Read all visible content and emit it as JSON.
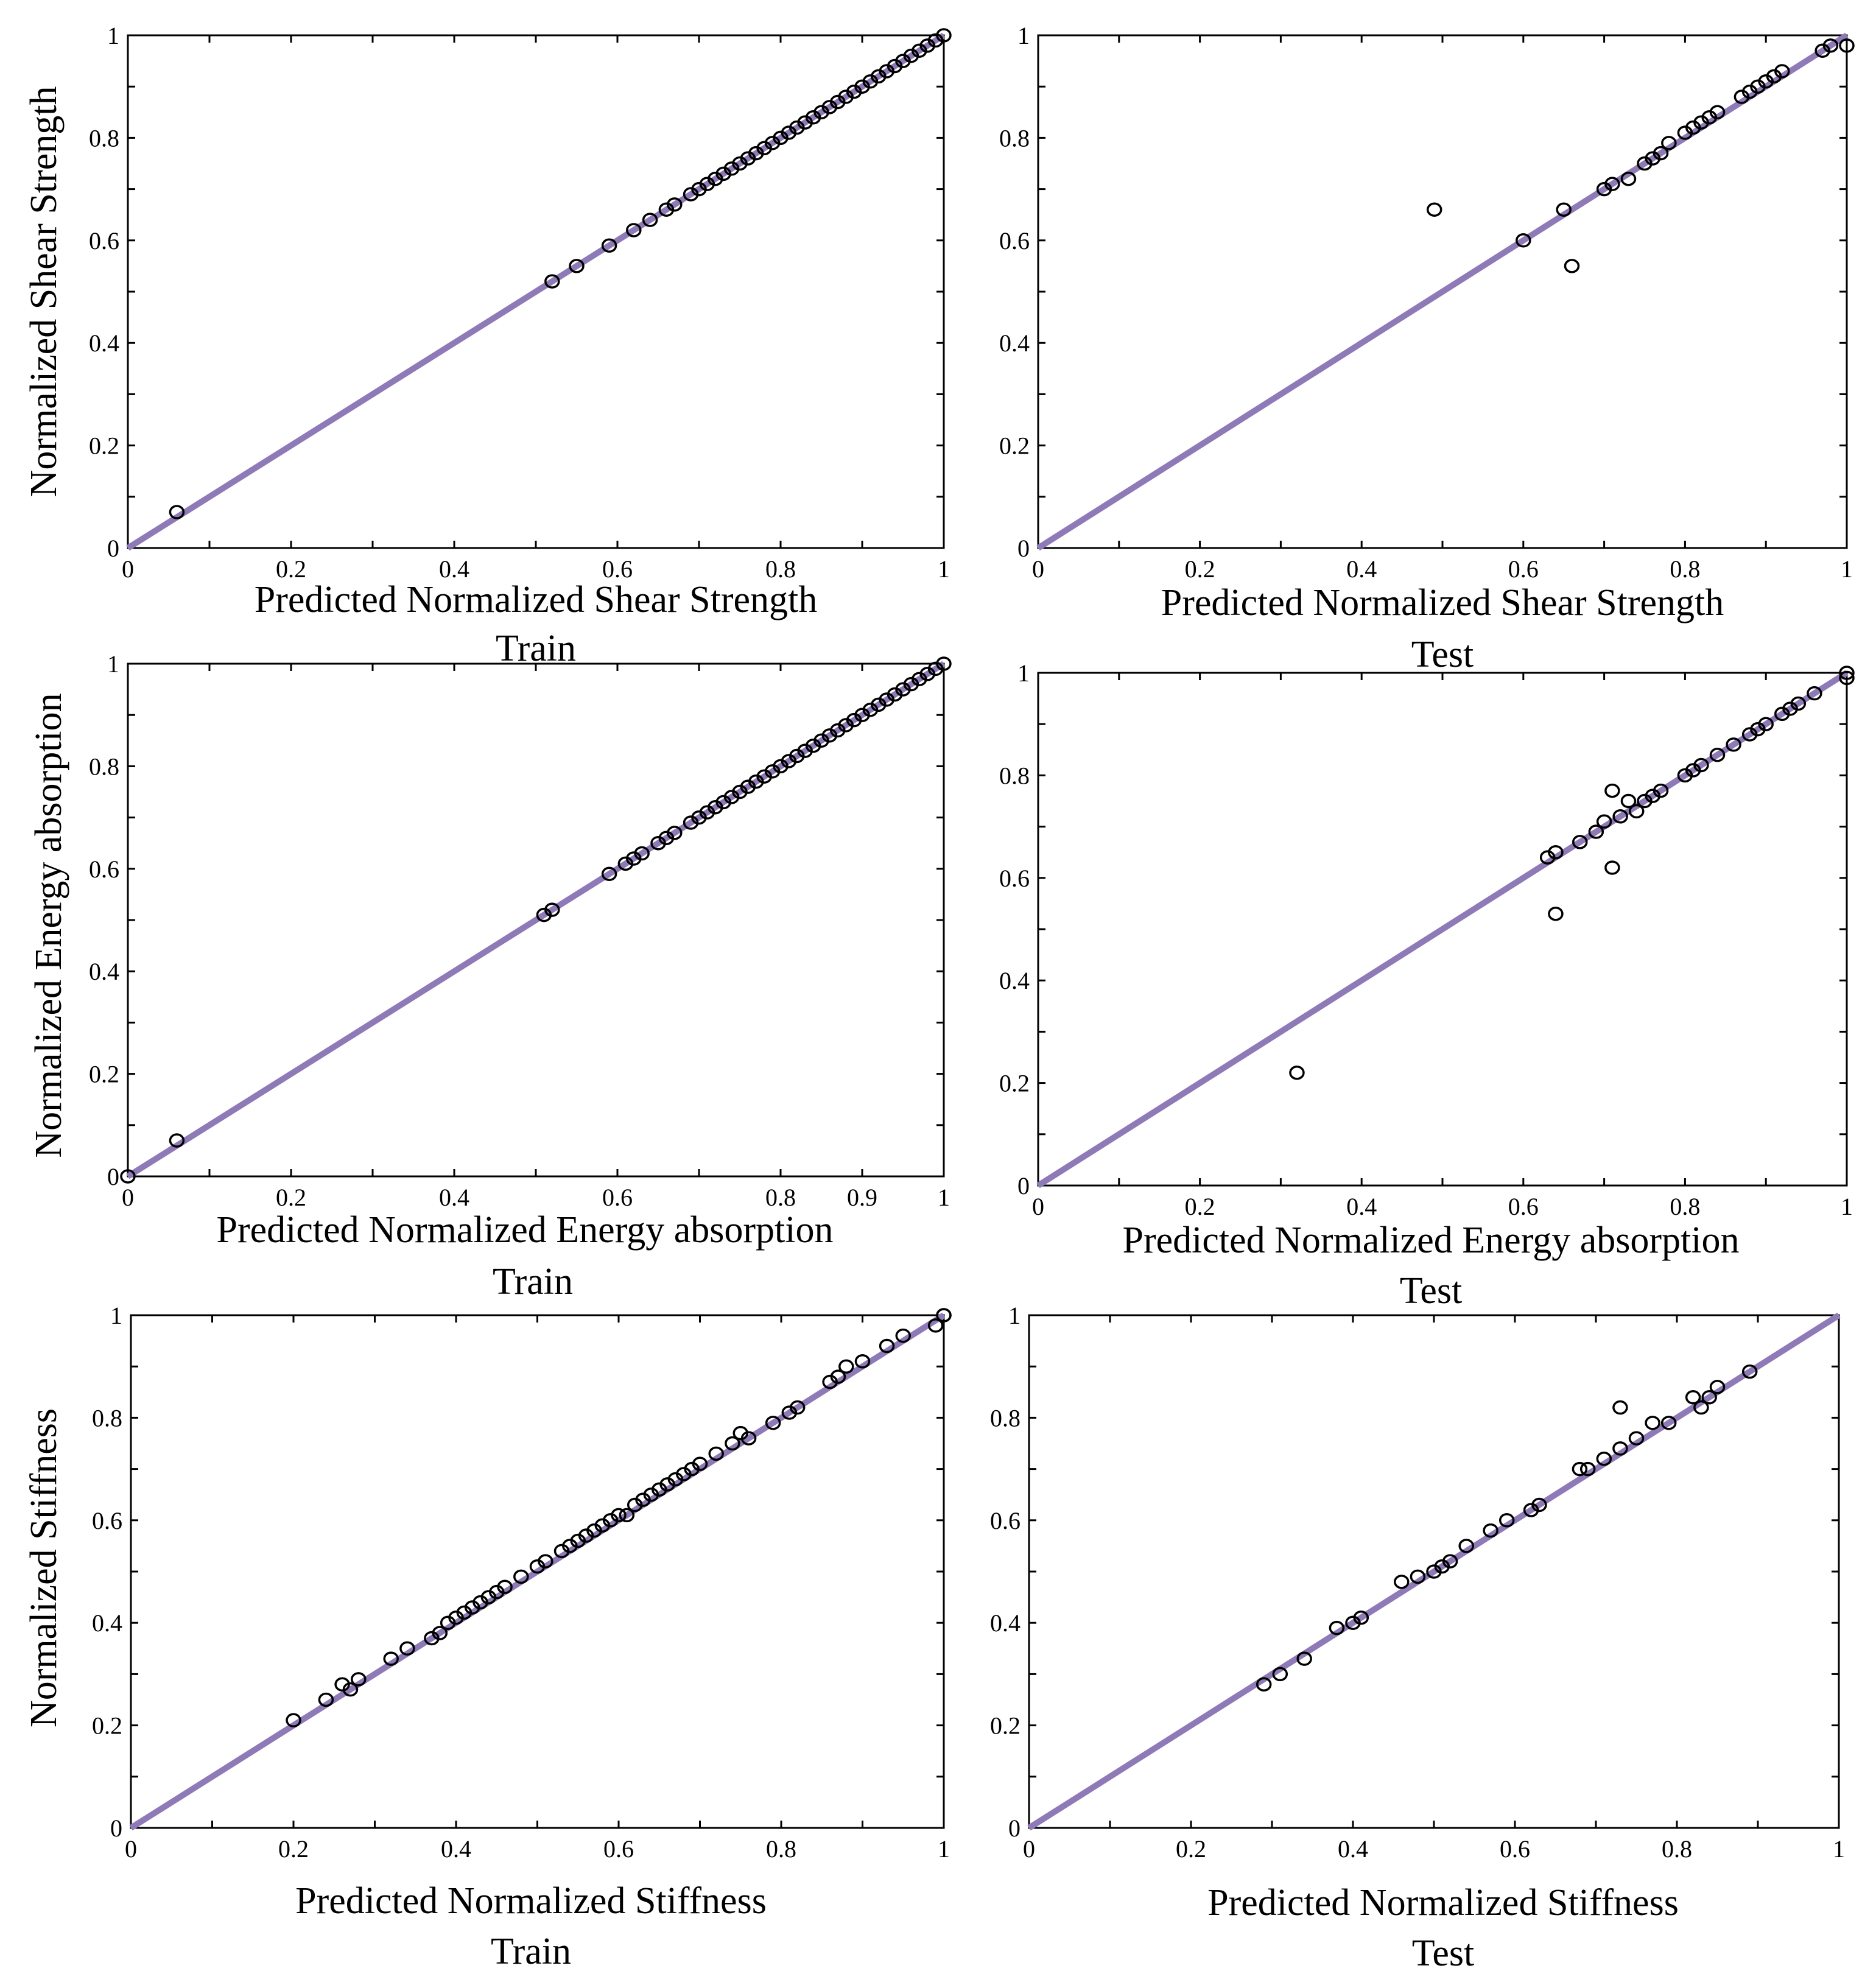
{
  "chart_data": [
    {
      "type": "scatter",
      "panel": "top-left",
      "xlabel": "Predicted Normalized Shear Strength",
      "ylabel": "Normalized Shear Strength",
      "caption": "Train",
      "xlim": [
        0,
        1
      ],
      "ylim": [
        0,
        1
      ],
      "xticks": [
        0,
        0.2,
        0.4,
        0.6,
        0.8,
        1
      ],
      "yticks": [
        0,
        0.2,
        0.4,
        0.6,
        0.8,
        1
      ],
      "xtick_labels": [
        "0",
        "0.2",
        "0.4",
        "0.6",
        "0.8",
        "1"
      ],
      "ytick_labels": [
        "0",
        "0.2",
        "0.4",
        "0.6",
        "0.8",
        "1"
      ],
      "reference_line": [
        [
          0,
          0
        ],
        [
          1,
          1
        ]
      ],
      "x": [
        0.06,
        0.52,
        0.55,
        0.59,
        0.62,
        0.64,
        0.66,
        0.67,
        0.69,
        0.7,
        0.71,
        0.72,
        0.73,
        0.74,
        0.75,
        0.76,
        0.77,
        0.78,
        0.79,
        0.8,
        0.81,
        0.82,
        0.83,
        0.84,
        0.85,
        0.86,
        0.87,
        0.88,
        0.89,
        0.9,
        0.91,
        0.92,
        0.93,
        0.94,
        0.95,
        0.96,
        0.97,
        0.98,
        0.99,
        1.0
      ],
      "y": [
        0.07,
        0.52,
        0.55,
        0.59,
        0.62,
        0.64,
        0.66,
        0.67,
        0.69,
        0.7,
        0.71,
        0.72,
        0.73,
        0.74,
        0.75,
        0.76,
        0.77,
        0.78,
        0.79,
        0.8,
        0.81,
        0.82,
        0.83,
        0.84,
        0.85,
        0.86,
        0.87,
        0.88,
        0.89,
        0.9,
        0.91,
        0.92,
        0.93,
        0.94,
        0.95,
        0.96,
        0.97,
        0.98,
        0.99,
        1.0
      ]
    },
    {
      "type": "scatter",
      "panel": "top-right",
      "xlabel": "Predicted Normalized Shear Strength",
      "ylabel": "",
      "caption": "Test",
      "xlim": [
        0,
        1
      ],
      "ylim": [
        0,
        1
      ],
      "xticks": [
        0,
        0.2,
        0.4,
        0.6,
        0.8,
        1
      ],
      "yticks": [
        0,
        0.2,
        0.4,
        0.6,
        0.8,
        1
      ],
      "xtick_labels": [
        "0",
        "0.2",
        "0.4",
        "0.6",
        "0.8",
        "1"
      ],
      "ytick_labels": [
        "0",
        "0.2",
        "0.4",
        "0.6",
        "0.8",
        "1"
      ],
      "reference_line": [
        [
          0,
          0
        ],
        [
          1,
          1
        ]
      ],
      "x": [
        0.49,
        0.6,
        0.65,
        0.66,
        0.7,
        0.71,
        0.73,
        0.75,
        0.76,
        0.77,
        0.78,
        0.8,
        0.81,
        0.82,
        0.83,
        0.84,
        0.87,
        0.88,
        0.89,
        0.9,
        0.91,
        0.92,
        0.97,
        0.98,
        1.0
      ],
      "y": [
        0.66,
        0.6,
        0.66,
        0.55,
        0.7,
        0.71,
        0.72,
        0.75,
        0.76,
        0.77,
        0.79,
        0.81,
        0.82,
        0.83,
        0.84,
        0.85,
        0.88,
        0.89,
        0.9,
        0.91,
        0.92,
        0.93,
        0.97,
        0.98,
        0.98
      ]
    },
    {
      "type": "scatter",
      "panel": "middle-left",
      "xlabel": "Predicted Normalized Energy absorption",
      "ylabel": "Normalized Energy absorption",
      "caption": "Train",
      "xlim": [
        0,
        1
      ],
      "ylim": [
        0,
        1
      ],
      "xticks": [
        0,
        0.2,
        0.4,
        0.6,
        0.8,
        0.9,
        1
      ],
      "yticks": [
        0,
        0.2,
        0.4,
        0.6,
        0.8,
        1
      ],
      "xtick_labels": [
        "0",
        "0.2",
        "0.4",
        "0.6",
        "0.8",
        "0.9",
        "1"
      ],
      "ytick_labels": [
        "0",
        "0.2",
        "0.4",
        "0.6",
        "0.8",
        "1"
      ],
      "reference_line": [
        [
          0,
          0
        ],
        [
          1,
          1
        ]
      ],
      "x": [
        0.0,
        0.06,
        0.51,
        0.52,
        0.59,
        0.61,
        0.62,
        0.63,
        0.65,
        0.66,
        0.67,
        0.69,
        0.7,
        0.71,
        0.72,
        0.73,
        0.74,
        0.75,
        0.76,
        0.77,
        0.78,
        0.79,
        0.8,
        0.81,
        0.82,
        0.83,
        0.84,
        0.85,
        0.86,
        0.87,
        0.88,
        0.89,
        0.9,
        0.91,
        0.92,
        0.93,
        0.94,
        0.95,
        0.96,
        0.97,
        0.98,
        0.99,
        1.0
      ],
      "y": [
        0.0,
        0.07,
        0.51,
        0.52,
        0.59,
        0.61,
        0.62,
        0.63,
        0.65,
        0.66,
        0.67,
        0.69,
        0.7,
        0.71,
        0.72,
        0.73,
        0.74,
        0.75,
        0.76,
        0.77,
        0.78,
        0.79,
        0.8,
        0.81,
        0.82,
        0.83,
        0.84,
        0.85,
        0.86,
        0.87,
        0.88,
        0.89,
        0.9,
        0.91,
        0.92,
        0.93,
        0.94,
        0.95,
        0.96,
        0.97,
        0.98,
        0.99,
        1.0
      ]
    },
    {
      "type": "scatter",
      "panel": "middle-right",
      "xlabel": "Predicted Normalized Energy absorption",
      "ylabel": "",
      "caption": "Test",
      "xlim": [
        0,
        1
      ],
      "ylim": [
        0,
        1
      ],
      "xticks": [
        0,
        0.2,
        0.4,
        0.6,
        0.8,
        1
      ],
      "yticks": [
        0,
        0.2,
        0.4,
        0.6,
        0.8,
        1
      ],
      "xtick_labels": [
        "0",
        "0.2",
        "0.4",
        "0.6",
        "0.8",
        "1"
      ],
      "ytick_labels": [
        "0",
        "0.2",
        "0.4",
        "0.6",
        "0.8",
        "1"
      ],
      "reference_line": [
        [
          0,
          0
        ],
        [
          1,
          1
        ]
      ],
      "x": [
        0.32,
        0.63,
        0.64,
        0.64,
        0.67,
        0.69,
        0.7,
        0.71,
        0.71,
        0.72,
        0.73,
        0.74,
        0.75,
        0.76,
        0.77,
        0.8,
        0.81,
        0.82,
        0.84,
        0.86,
        0.88,
        0.89,
        0.9,
        0.92,
        0.93,
        0.94,
        0.96,
        1.0,
        1.0
      ],
      "y": [
        0.22,
        0.64,
        0.65,
        0.53,
        0.67,
        0.69,
        0.71,
        0.77,
        0.62,
        0.72,
        0.75,
        0.73,
        0.75,
        0.76,
        0.77,
        0.8,
        0.81,
        0.82,
        0.84,
        0.86,
        0.88,
        0.89,
        0.9,
        0.92,
        0.93,
        0.94,
        0.96,
        1.0,
        0.99
      ]
    },
    {
      "type": "scatter",
      "panel": "bottom-left",
      "xlabel": "Predicted Normalized Stiffness",
      "ylabel": "Normalized Stiffness",
      "caption": "Train",
      "xlim": [
        0,
        1
      ],
      "ylim": [
        0,
        1
      ],
      "xticks": [
        0,
        0.2,
        0.4,
        0.6,
        0.8,
        1
      ],
      "yticks": [
        0,
        0.2,
        0.4,
        0.6,
        0.8,
        1
      ],
      "xtick_labels": [
        "0",
        "0.2",
        "0.4",
        "0.6",
        "0.8",
        "1"
      ],
      "ytick_labels": [
        "0",
        "0.2",
        "0.4",
        "0.6",
        "0.8",
        "1"
      ],
      "reference_line": [
        [
          0,
          0
        ],
        [
          1,
          1
        ]
      ],
      "x": [
        0.2,
        0.24,
        0.26,
        0.27,
        0.28,
        0.32,
        0.34,
        0.37,
        0.38,
        0.39,
        0.4,
        0.41,
        0.42,
        0.43,
        0.44,
        0.45,
        0.46,
        0.48,
        0.5,
        0.51,
        0.53,
        0.54,
        0.55,
        0.56,
        0.57,
        0.58,
        0.59,
        0.6,
        0.61,
        0.62,
        0.63,
        0.64,
        0.65,
        0.66,
        0.67,
        0.68,
        0.69,
        0.7,
        0.72,
        0.74,
        0.75,
        0.76,
        0.79,
        0.81,
        0.82,
        0.86,
        0.87,
        0.88,
        0.9,
        0.93,
        0.95,
        0.99,
        1.0,
        1.0
      ],
      "y": [
        0.21,
        0.25,
        0.28,
        0.27,
        0.29,
        0.33,
        0.35,
        0.37,
        0.38,
        0.4,
        0.41,
        0.42,
        0.43,
        0.44,
        0.45,
        0.46,
        0.47,
        0.49,
        0.51,
        0.52,
        0.54,
        0.55,
        0.56,
        0.57,
        0.58,
        0.59,
        0.6,
        0.61,
        0.61,
        0.63,
        0.64,
        0.65,
        0.66,
        0.67,
        0.68,
        0.69,
        0.7,
        0.71,
        0.73,
        0.75,
        0.77,
        0.76,
        0.79,
        0.81,
        0.82,
        0.87,
        0.88,
        0.9,
        0.91,
        0.94,
        0.96,
        0.98,
        1.0,
        1.0
      ]
    },
    {
      "type": "scatter",
      "panel": "bottom-right",
      "xlabel": "Predicted Normalized Stiffness",
      "ylabel": "",
      "caption": "Test",
      "xlim": [
        0,
        1
      ],
      "ylim": [
        0,
        1
      ],
      "xticks": [
        0,
        0.2,
        0.4,
        0.6,
        0.8,
        1
      ],
      "yticks": [
        0,
        0.2,
        0.4,
        0.6,
        0.8,
        1
      ],
      "xtick_labels": [
        "0",
        "0.2",
        "0.4",
        "0.6",
        "0.8",
        "1"
      ],
      "ytick_labels": [
        "0",
        "0.2",
        "0.4",
        "0.6",
        "0.8",
        "1"
      ],
      "reference_line": [
        [
          0,
          0
        ],
        [
          1,
          1
        ]
      ],
      "x": [
        0.29,
        0.31,
        0.34,
        0.38,
        0.4,
        0.41,
        0.46,
        0.48,
        0.5,
        0.51,
        0.52,
        0.54,
        0.57,
        0.59,
        0.62,
        0.63,
        0.68,
        0.69,
        0.71,
        0.73,
        0.73,
        0.75,
        0.77,
        0.79,
        0.82,
        0.83,
        0.84,
        0.85,
        0.89
      ],
      "y": [
        0.28,
        0.3,
        0.33,
        0.39,
        0.4,
        0.41,
        0.48,
        0.49,
        0.5,
        0.51,
        0.52,
        0.55,
        0.58,
        0.6,
        0.62,
        0.63,
        0.7,
        0.7,
        0.72,
        0.74,
        0.82,
        0.76,
        0.79,
        0.79,
        0.84,
        0.82,
        0.84,
        0.86,
        0.89
      ]
    }
  ]
}
